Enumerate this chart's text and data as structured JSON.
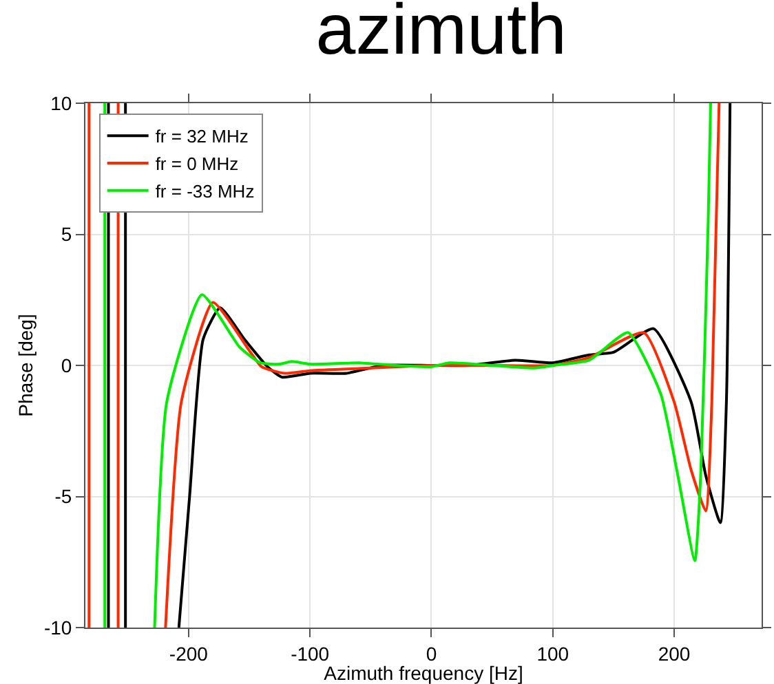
{
  "chart_data": {
    "type": "line",
    "title": "azimuth",
    "xlabel": "Azimuth frequency [Hz]",
    "ylabel": "Phase [deg]",
    "xlim": [
      -285,
      272
    ],
    "ylim": [
      -10,
      10
    ],
    "xticks": [
      -200,
      -100,
      0,
      100,
      200
    ],
    "yticks": [
      -10,
      -5,
      0,
      5,
      10
    ],
    "grid": true,
    "legend": "top left",
    "marker": "none",
    "line_style": "solid",
    "series": [
      {
        "name": "fr = 32 MHz",
        "color": "#000000",
        "x": [
          -266,
          -266,
          null,
          -252,
          -252,
          null,
          -208,
          -199,
          -188,
          -174,
          -154,
          -135,
          -123,
          -100,
          -70,
          -40,
          0,
          30,
          69,
          100,
          130,
          150,
          183,
          214,
          226,
          238,
          243,
          246
        ],
        "values": [
          10,
          -10,
          null,
          -10,
          10,
          null,
          -10,
          -4.9,
          1.0,
          2.2,
          1.0,
          -0.05,
          -0.45,
          -0.3,
          -0.3,
          0,
          0,
          0,
          0.2,
          0.1,
          0.4,
          0.5,
          1.4,
          -1.4,
          -4.2,
          -6.0,
          -1.4,
          10
        ]
      },
      {
        "name": "fr = 0 MHz",
        "color": "#ff2a00",
        "x": [
          -282,
          -282,
          null,
          -258,
          -258,
          null,
          -219,
          -206,
          -180,
          -149,
          -140,
          -121,
          -100,
          -50,
          0,
          50,
          100,
          130,
          175,
          200,
          214,
          226,
          231,
          237
        ],
        "values": [
          10,
          -10,
          null,
          -10,
          10,
          null,
          -10,
          -1.4,
          2.4,
          0.5,
          -0.05,
          -0.3,
          -0.2,
          -0.1,
          0,
          0,
          0,
          0.3,
          1.25,
          -1.4,
          -4.0,
          -5.55,
          -1.4,
          10
        ]
      },
      {
        "name": "fr = -33 MHz",
        "color": "#00ee00",
        "x": [
          -269,
          -269,
          null,
          -228,
          -218,
          -189,
          -158,
          -141,
          -125,
          -115,
          -100,
          -60,
          -30,
          0,
          15,
          50,
          85,
          100,
          130,
          162,
          189,
          203,
          217,
          222,
          228,
          230
        ],
        "values": [
          10,
          -10,
          null,
          -10,
          -1.4,
          2.7,
          0.7,
          0.1,
          0.05,
          0.15,
          0.05,
          0.1,
          0,
          -0.05,
          0.1,
          0,
          -0.1,
          0,
          0.2,
          1.25,
          -1.1,
          -4.2,
          -7.45,
          -4.0,
          5.5,
          10
        ]
      }
    ]
  }
}
